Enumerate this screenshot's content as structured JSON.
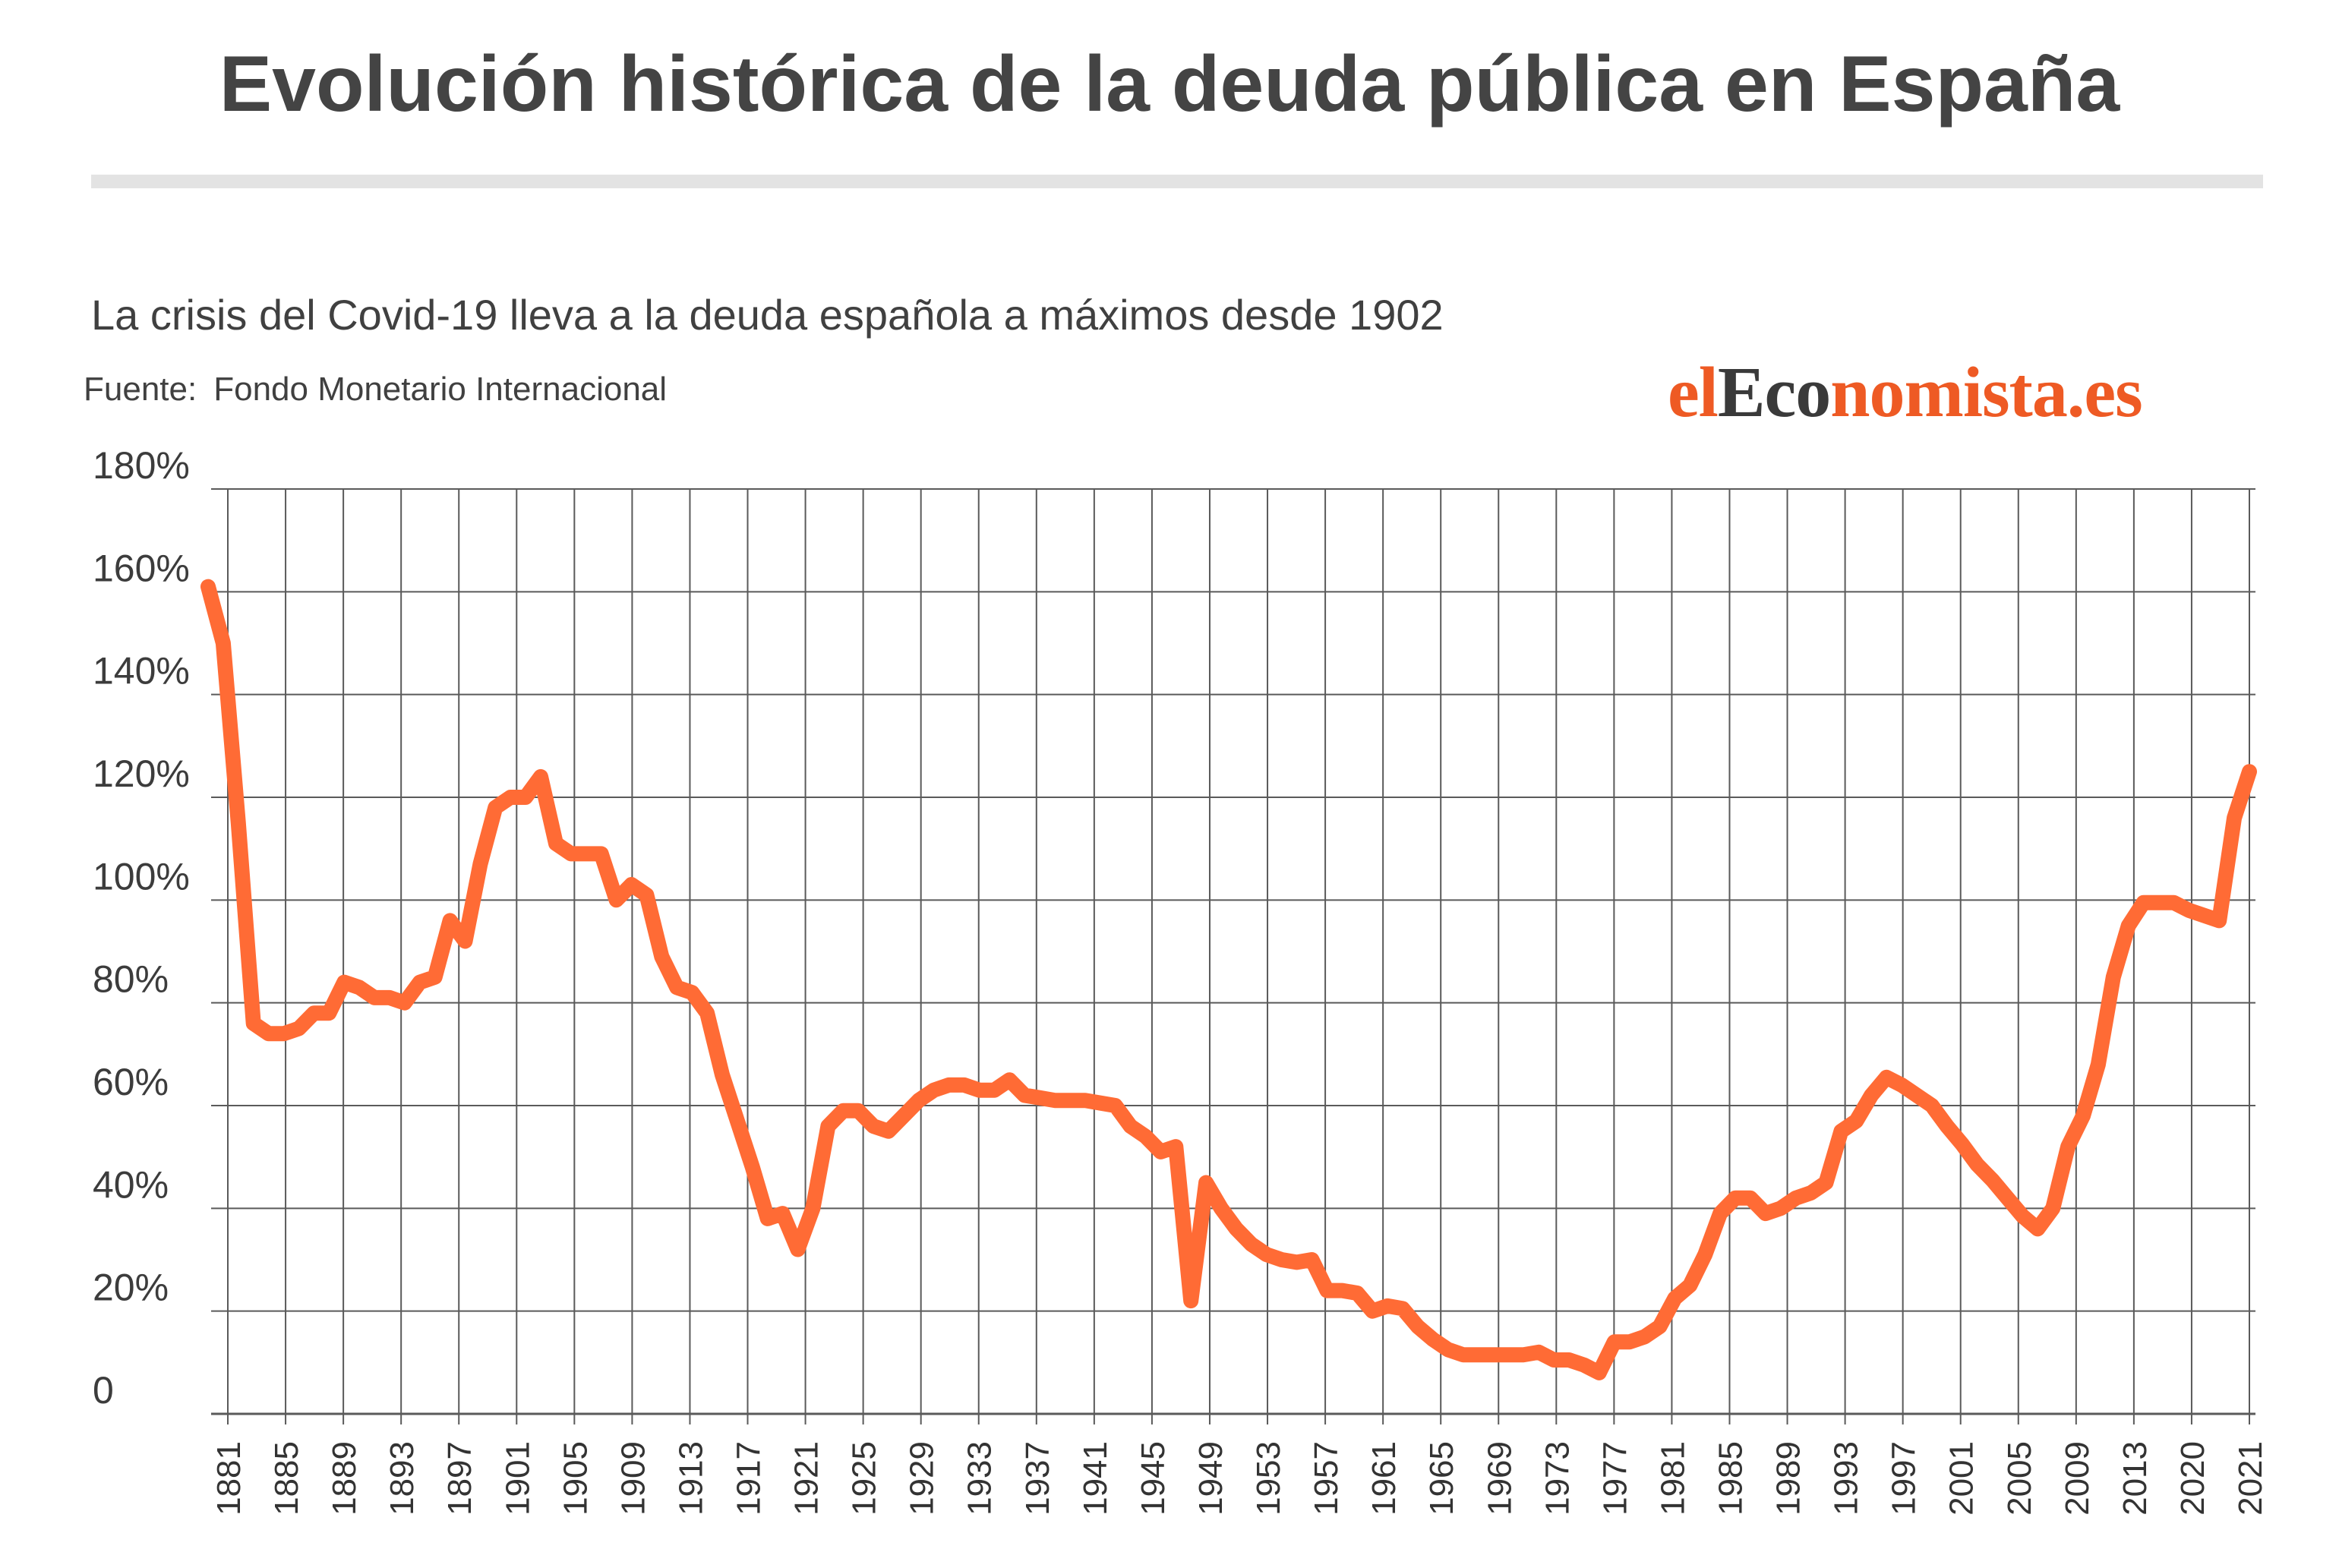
{
  "header": {
    "title": "Evolución histórica de la deuda pública en España",
    "subtitle": "La crisis del Covid-19 lleva a la deuda española a máximos desde 1902",
    "source_label": "Fuente:",
    "source_name": "Fondo Monetario Internacional"
  },
  "logo": {
    "part1": "el",
    "part2": "Eco",
    "part3": "nomista.es"
  },
  "colors": {
    "line": "#ff6b35",
    "grid": "#5a5a5a",
    "rule": "#e3e3e3",
    "text": "#444444"
  },
  "chart_data": {
    "type": "line",
    "title": "",
    "xlabel": "",
    "ylabel": "",
    "ylim": [
      0,
      180
    ],
    "grid": true,
    "y_ticks": [
      "0",
      "20%",
      "40%",
      "60%",
      "80%",
      "100%",
      "120%",
      "140%",
      "160%",
      "180%"
    ],
    "x_ticks": [
      "1881",
      "1885",
      "1889",
      "1893",
      "1897",
      "1901",
      "1905",
      "1909",
      "1913",
      "1917",
      "1921",
      "1925",
      "1929",
      "1933",
      "1937",
      "1941",
      "1945",
      "1949",
      "1953",
      "1957",
      "1961",
      "1965",
      "1969",
      "1973",
      "1977",
      "1981",
      "1985",
      "1989",
      "1993",
      "1997",
      "2001",
      "2005",
      "2009",
      "2013",
      "2020",
      "2021"
    ],
    "series": [
      {
        "values": [
          [
            1880,
            161
          ],
          [
            1881,
            150
          ],
          [
            1882,
            115
          ],
          [
            1883,
            76
          ],
          [
            1884,
            74
          ],
          [
            1885,
            74
          ],
          [
            1886,
            75
          ],
          [
            1887,
            78
          ],
          [
            1888,
            78
          ],
          [
            1889,
            84
          ],
          [
            1890,
            83
          ],
          [
            1891,
            81
          ],
          [
            1892,
            81
          ],
          [
            1893,
            80
          ],
          [
            1894,
            84
          ],
          [
            1895,
            85
          ],
          [
            1896,
            96
          ],
          [
            1897,
            92
          ],
          [
            1898,
            107
          ],
          [
            1899,
            118
          ],
          [
            1900,
            120
          ],
          [
            1901,
            120
          ],
          [
            1902,
            124
          ],
          [
            1903,
            111
          ],
          [
            1904,
            109
          ],
          [
            1905,
            109
          ],
          [
            1906,
            109
          ],
          [
            1907,
            100
          ],
          [
            1908,
            103
          ],
          [
            1909,
            101
          ],
          [
            1910,
            89
          ],
          [
            1911,
            83
          ],
          [
            1912,
            82
          ],
          [
            1913,
            78
          ],
          [
            1914,
            66
          ],
          [
            1915,
            57
          ],
          [
            1916,
            48
          ],
          [
            1917,
            38
          ],
          [
            1918,
            39
          ],
          [
            1919,
            32
          ],
          [
            1920,
            40
          ],
          [
            1921,
            56
          ],
          [
            1922,
            59
          ],
          [
            1923,
            59
          ],
          [
            1924,
            56
          ],
          [
            1925,
            55
          ],
          [
            1926,
            58
          ],
          [
            1927,
            61
          ],
          [
            1928,
            63
          ],
          [
            1929,
            64
          ],
          [
            1930,
            64
          ],
          [
            1931,
            63
          ],
          [
            1932,
            63
          ],
          [
            1933,
            65
          ],
          [
            1934,
            62
          ],
          [
            1935,
            61.5
          ],
          [
            1936,
            61
          ],
          [
            1937,
            61
          ],
          [
            1938,
            61
          ],
          [
            1939,
            60.5
          ],
          [
            1940,
            60
          ],
          [
            1941,
            56
          ],
          [
            1942,
            54
          ],
          [
            1943,
            51
          ],
          [
            1944,
            52
          ],
          [
            1945,
            22
          ],
          [
            1946,
            45
          ],
          [
            1947,
            40
          ],
          [
            1948,
            36
          ],
          [
            1949,
            33
          ],
          [
            1950,
            31
          ],
          [
            1951,
            30
          ],
          [
            1952,
            29.5
          ],
          [
            1953,
            30
          ],
          [
            1954,
            24
          ],
          [
            1955,
            24
          ],
          [
            1956,
            23.5
          ],
          [
            1957,
            20
          ],
          [
            1958,
            21
          ],
          [
            1959,
            20.5
          ],
          [
            1960,
            17
          ],
          [
            1961,
            14.5
          ],
          [
            1962,
            12.5
          ],
          [
            1963,
            11.5
          ],
          [
            1964,
            11.5
          ],
          [
            1965,
            11.5
          ],
          [
            1966,
            11.5
          ],
          [
            1967,
            11.5
          ],
          [
            1968,
            12
          ],
          [
            1969,
            10.5
          ],
          [
            1970,
            10.5
          ],
          [
            1971,
            9.5
          ],
          [
            1972,
            8
          ],
          [
            1973,
            14
          ],
          [
            1974,
            14
          ],
          [
            1975,
            15
          ],
          [
            1976,
            17
          ],
          [
            1977,
            22.5
          ],
          [
            1978,
            25
          ],
          [
            1979,
            31
          ],
          [
            1980,
            39
          ],
          [
            1981,
            42
          ],
          [
            1982,
            42
          ],
          [
            1983,
            39
          ],
          [
            1984,
            40
          ],
          [
            1985,
            42
          ],
          [
            1986,
            43
          ],
          [
            1987,
            45
          ],
          [
            1988,
            55
          ],
          [
            1989,
            57
          ],
          [
            1990,
            62
          ],
          [
            1991,
            65.5
          ],
          [
            1992,
            64
          ],
          [
            1993,
            62
          ],
          [
            1994,
            60
          ],
          [
            1995,
            56
          ],
          [
            1996,
            52.5
          ],
          [
            1997,
            48.5
          ],
          [
            1998,
            45.5
          ],
          [
            1999,
            42
          ],
          [
            2000,
            38.5
          ],
          [
            2001,
            36
          ],
          [
            2002,
            40
          ],
          [
            2003,
            52
          ],
          [
            2004,
            58
          ],
          [
            2005,
            68
          ],
          [
            2006,
            85
          ],
          [
            2007,
            95
          ],
          [
            2008,
            99.5
          ],
          [
            2009,
            99.5
          ],
          [
            2010,
            99.5
          ],
          [
            2011,
            98
          ],
          [
            2012,
            97
          ],
          [
            2013,
            96
          ],
          [
            2014,
            116
          ],
          [
            2015,
            125
          ]
        ]
      }
    ]
  }
}
